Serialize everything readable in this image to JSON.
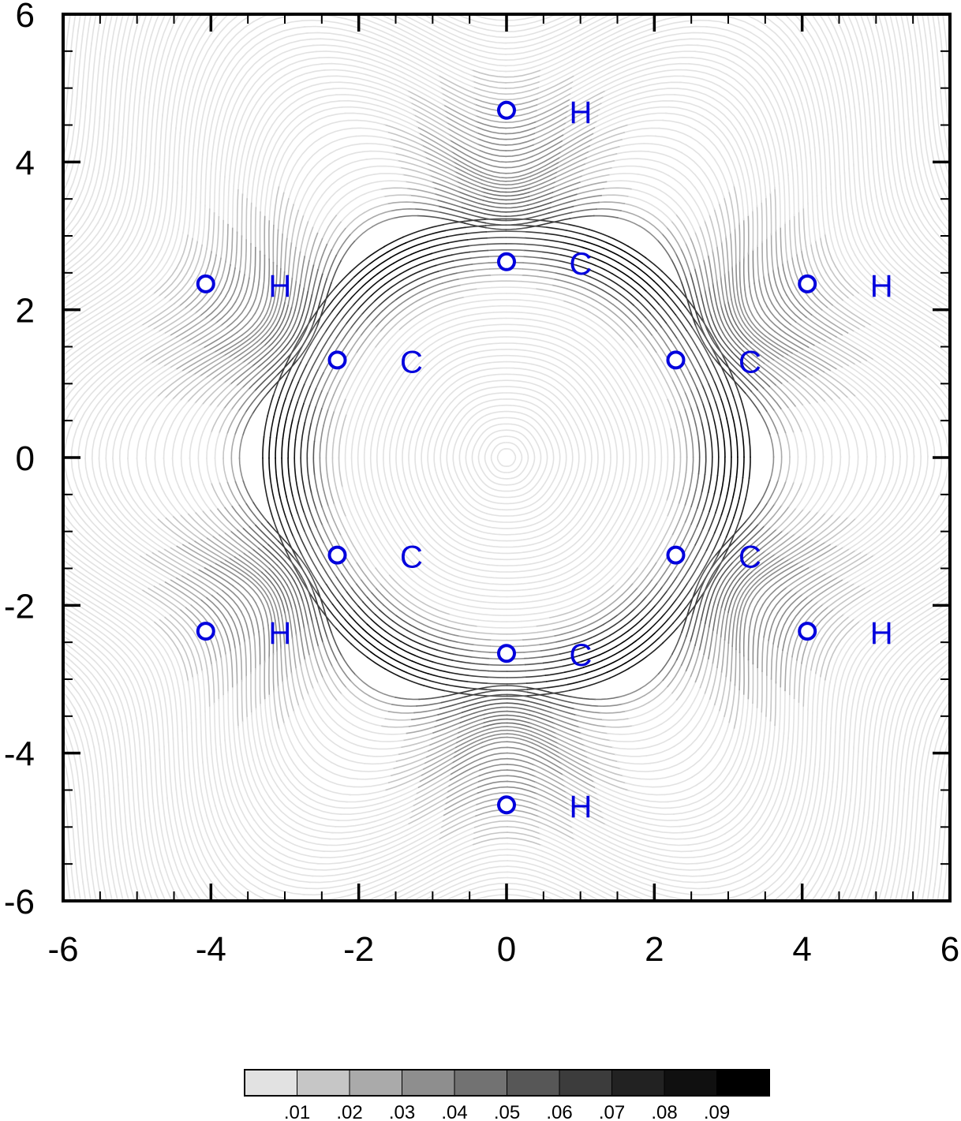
{
  "chart_data": {
    "type": "streamline",
    "title": "",
    "xlabel": "",
    "ylabel": "",
    "xlim": [
      -6,
      6
    ],
    "ylim": [
      -6,
      6
    ],
    "x_ticks": [
      "-6",
      "-4",
      "-2",
      "0",
      "2",
      "4",
      "6"
    ],
    "y_ticks": [
      "6",
      "4",
      "2",
      "0",
      "-2",
      "-4",
      "-6"
    ],
    "grid": false,
    "atoms": [
      {
        "label": "H",
        "x": 0.0,
        "y": 4.7
      },
      {
        "label": "C",
        "x": 0.0,
        "y": 2.65
      },
      {
        "label": "H",
        "x": -4.07,
        "y": 2.35
      },
      {
        "label": "H",
        "x": 4.07,
        "y": 2.35
      },
      {
        "label": "C",
        "x": -2.29,
        "y": 1.32
      },
      {
        "label": "C",
        "x": 2.29,
        "y": 1.32
      },
      {
        "label": "C",
        "x": -2.29,
        "y": -1.32
      },
      {
        "label": "C",
        "x": 2.29,
        "y": -1.32
      },
      {
        "label": "H",
        "x": -4.07,
        "y": -2.35
      },
      {
        "label": "H",
        "x": 4.07,
        "y": -2.35
      },
      {
        "label": "C",
        "x": 0.0,
        "y": -2.65
      },
      {
        "label": "H",
        "x": 0.0,
        "y": -4.7
      }
    ],
    "marker_color": "#0000dd",
    "label_color": "#0000dd",
    "colorbar": {
      "position": "bottom",
      "levels": [
        ".01",
        ".02",
        ".03",
        ".04",
        ".05",
        ".06",
        ".07",
        ".08",
        ".09"
      ],
      "colors": [
        "#e2e2e2",
        "#c6c6c6",
        "#aaaaaa",
        "#8e8e8e",
        "#727272",
        "#575757",
        "#3c3c3c",
        "#222222",
        "#101010",
        "#000000"
      ]
    }
  }
}
